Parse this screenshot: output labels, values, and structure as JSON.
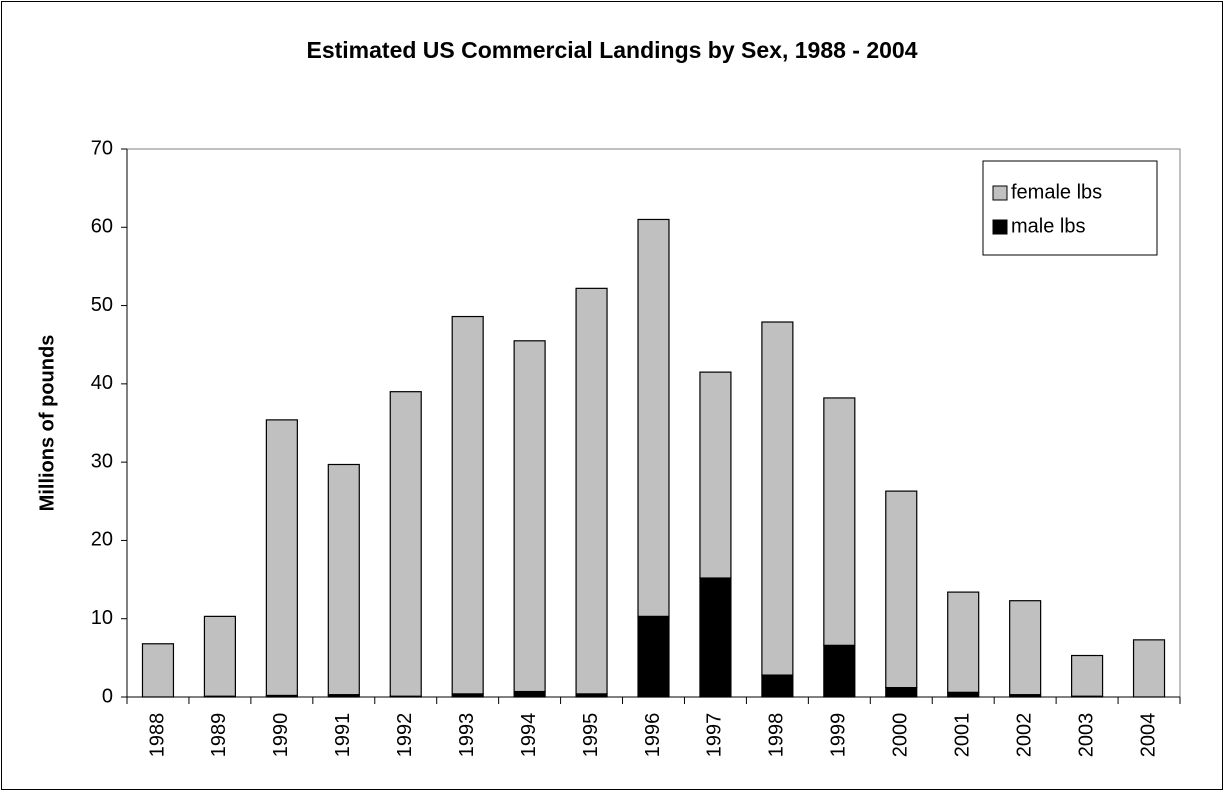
{
  "chart_data": {
    "type": "stacked_bar",
    "title": "Estimated US Commercial Landings by Sex, 1988 - 2004",
    "y_label": "Millions of pounds",
    "categories": [
      "1988",
      "1989",
      "1990",
      "1991",
      "1992",
      "1993",
      "1994",
      "1995",
      "1996",
      "1997",
      "1998",
      "1999",
      "2000",
      "2001",
      "2002",
      "2003",
      "2004"
    ],
    "series": [
      {
        "name": "female lbs",
        "color": "#c0c0c0",
        "values": [
          6.8,
          10.2,
          35.2,
          29.4,
          38.9,
          48.2,
          44.8,
          51.8,
          50.7,
          26.3,
          45.1,
          31.6,
          25.1,
          12.8,
          12.0,
          5.2,
          7.3
        ]
      },
      {
        "name": "male lbs",
        "color": "#000000",
        "values": [
          0,
          0.1,
          0.2,
          0.3,
          0.1,
          0.4,
          0.7,
          0.4,
          10.3,
          15.2,
          2.8,
          6.6,
          1.2,
          0.6,
          0.3,
          0.1,
          0
        ]
      }
    ],
    "stack_order": [
      "male lbs",
      "female lbs"
    ],
    "ylim": [
      0,
      70
    ],
    "yticks": [
      0,
      10,
      20,
      30,
      40,
      50,
      60,
      70
    ],
    "grid": false,
    "legend": "top-right"
  }
}
